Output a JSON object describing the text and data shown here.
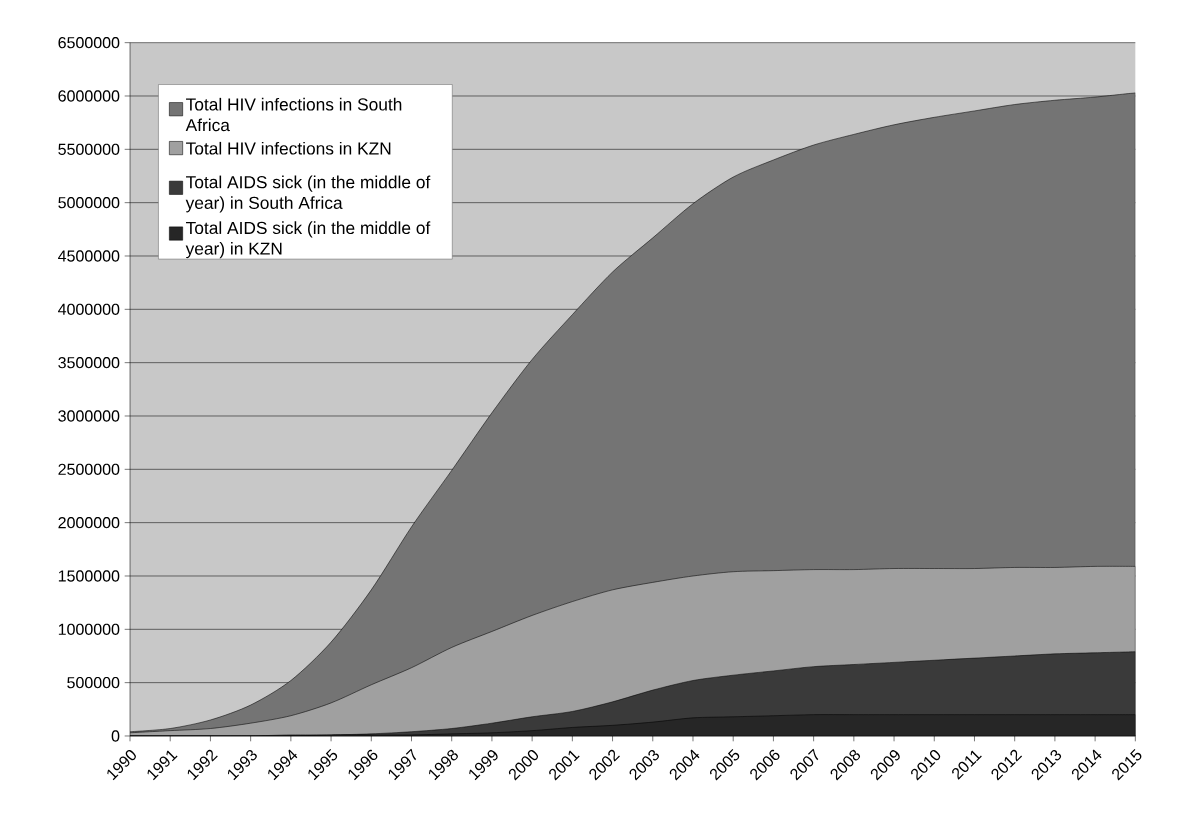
{
  "chart_data": {
    "type": "area",
    "categories": [
      "1990",
      "1991",
      "1992",
      "1993",
      "1994",
      "1995",
      "1996",
      "1997",
      "1998",
      "1999",
      "2000",
      "2001",
      "2002",
      "2003",
      "2004",
      "2005",
      "2006",
      "2007",
      "2008",
      "2009",
      "2010",
      "2011",
      "2012",
      "2013",
      "2014",
      "2015"
    ],
    "series": [
      {
        "name": "Total HIV infections in South Africa",
        "color": "#747474",
        "values": [
          40000,
          70000,
          150000,
          290000,
          520000,
          880000,
          1370000,
          1960000,
          2490000,
          3030000,
          3530000,
          3950000,
          4350000,
          4670000,
          4990000,
          5240000,
          5400000,
          5540000,
          5640000,
          5730000,
          5800000,
          5860000,
          5920000,
          5960000,
          5990000,
          6030000
        ]
      },
      {
        "name": "Total HIV infections in KZN",
        "color": "#a0a0a0",
        "values": [
          30000,
          50000,
          70000,
          120000,
          190000,
          310000,
          480000,
          640000,
          830000,
          980000,
          1130000,
          1260000,
          1370000,
          1440000,
          1500000,
          1540000,
          1550000,
          1560000,
          1560000,
          1570000,
          1570000,
          1570000,
          1580000,
          1580000,
          1590000,
          1590000
        ]
      },
      {
        "name": "Total AIDS sick (in the middle of year) in South Africa",
        "color": "#3a3a3a",
        "values": [
          0,
          0,
          0,
          0,
          10000,
          10000,
          20000,
          40000,
          70000,
          120000,
          180000,
          230000,
          320000,
          430000,
          520000,
          570000,
          610000,
          650000,
          670000,
          690000,
          710000,
          730000,
          750000,
          770000,
          780000,
          790000
        ]
      },
      {
        "name": "Total AIDS sick (in the middle of year) in KZN",
        "color": "#262626",
        "values": [
          0,
          0,
          0,
          0,
          0,
          10000,
          10000,
          10000,
          20000,
          30000,
          50000,
          80000,
          100000,
          130000,
          170000,
          180000,
          190000,
          200000,
          200000,
          200000,
          200000,
          200000,
          200000,
          200000,
          200000,
          200000
        ]
      }
    ],
    "ylim": [
      0,
      6500000
    ],
    "yticks": [
      0,
      500000,
      1000000,
      1500000,
      2000000,
      2500000,
      3000000,
      3500000,
      4000000,
      4500000,
      5000000,
      5500000,
      6000000,
      6500000
    ],
    "grid": "y",
    "legend": "top left"
  }
}
